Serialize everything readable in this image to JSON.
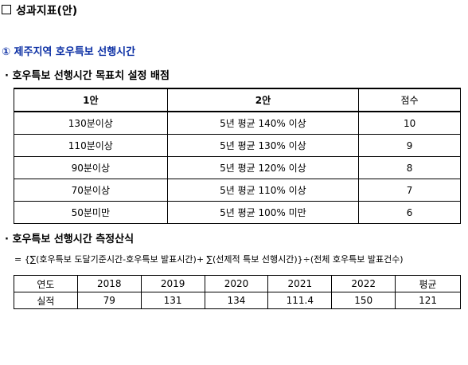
{
  "doc_title": "성과지표(안)",
  "section_heading": "① 제주지역 호우특보 선행시간",
  "sub1": "· 호우특보 선행시간 목표치 설정 배점",
  "target_table": {
    "headers": [
      "1안",
      "2안",
      "점수"
    ],
    "rows": [
      [
        "130분이상",
        "5년 평균 140% 이상",
        "10"
      ],
      [
        "110분이상",
        "5년 평균 130% 이상",
        "9"
      ],
      [
        "90분이상",
        "5년 평균 120% 이상",
        "8"
      ],
      [
        "70분이상",
        "5년 평균 110% 이상",
        "7"
      ],
      [
        "50분미만",
        "5년 평균 100% 미만",
        "6"
      ]
    ]
  },
  "sub2": "· 호우특보 선행시간 측정산식",
  "formula": "= {∑(호우특보 도달기준시간-호우특보 발표시간)+ ∑(선제적 특보 선행시간)}÷(전체 호우특보 발표건수)",
  "perf_table": {
    "headers": [
      "연도",
      "2018",
      "2019",
      "2020",
      "2021",
      "2022",
      "평균"
    ],
    "row": [
      "실적",
      "79",
      "131",
      "134",
      "111.4",
      "150",
      "121"
    ]
  }
}
